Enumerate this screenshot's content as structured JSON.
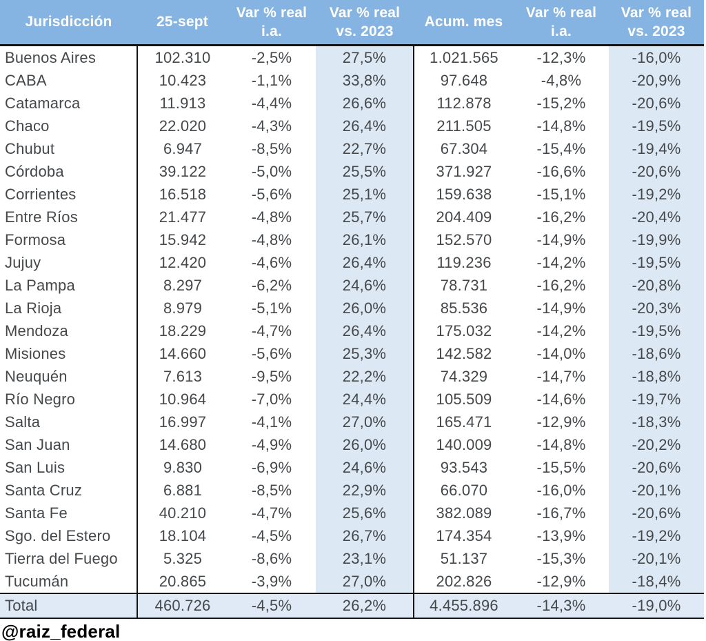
{
  "header": {
    "cols": [
      {
        "id": "jurisdiccion",
        "line1": "Jurisdicción",
        "line2": ""
      },
      {
        "id": "sept25",
        "line1": "25-sept",
        "line2": ""
      },
      {
        "id": "var-ia",
        "line1": "Var % real",
        "line2": "i.a."
      },
      {
        "id": "var-2023",
        "line1": "Var % real",
        "line2": "vs. 2023"
      },
      {
        "id": "acum-mes",
        "line1": "Acum. mes",
        "line2": ""
      },
      {
        "id": "acum-ia",
        "line1": "Var % real",
        "line2": "i.a."
      },
      {
        "id": "acum-2023",
        "line1": "Var % real",
        "line2": "vs. 2023"
      }
    ]
  },
  "footer": {
    "handle": "@raiz_federal"
  },
  "colors": {
    "header_bg": "#85b4e2",
    "header_text": "#ffffff",
    "highlight_col_bg": "#dce9f5",
    "total_row_bg": "#dfeaf6",
    "body_text": "#45484b",
    "border": "#141414"
  },
  "chart_data": {
    "type": "table",
    "title": "",
    "columns": [
      "Jurisdicción",
      "25-sept",
      "Var % real i.a.",
      "Var % real vs. 2023",
      "Acum. mes",
      "Var % real i.a.",
      "Var % real vs. 2023"
    ],
    "rows": [
      [
        "Buenos Aires",
        "102.310",
        "-2,5%",
        "27,5%",
        "1.021.565",
        "-12,3%",
        "-16,0%"
      ],
      [
        "CABA",
        "10.423",
        "-1,1%",
        "33,8%",
        "97.648",
        "-4,8%",
        "-20,9%"
      ],
      [
        "Catamarca",
        "11.913",
        "-4,4%",
        "26,6%",
        "112.878",
        "-15,2%",
        "-20,6%"
      ],
      [
        "Chaco",
        "22.020",
        "-4,3%",
        "26,4%",
        "211.505",
        "-14,8%",
        "-19,5%"
      ],
      [
        "Chubut",
        "6.947",
        "-8,5%",
        "22,7%",
        "67.304",
        "-15,4%",
        "-19,4%"
      ],
      [
        "Córdoba",
        "39.122",
        "-5,0%",
        "25,5%",
        "371.927",
        "-16,6%",
        "-20,6%"
      ],
      [
        "Corrientes",
        "16.518",
        "-5,6%",
        "25,1%",
        "159.638",
        "-15,1%",
        "-19,2%"
      ],
      [
        "Entre Ríos",
        "21.477",
        "-4,8%",
        "25,7%",
        "204.409",
        "-16,2%",
        "-20,4%"
      ],
      [
        "Formosa",
        "15.942",
        "-4,8%",
        "26,1%",
        "152.570",
        "-14,9%",
        "-19,9%"
      ],
      [
        "Jujuy",
        "12.420",
        "-4,6%",
        "26,4%",
        "119.236",
        "-14,2%",
        "-19,5%"
      ],
      [
        "La Pampa",
        "8.297",
        "-6,2%",
        "24,6%",
        "78.731",
        "-16,2%",
        "-20,8%"
      ],
      [
        "La Rioja",
        "8.979",
        "-5,1%",
        "26,0%",
        "85.536",
        "-14,9%",
        "-20,3%"
      ],
      [
        "Mendoza",
        "18.229",
        "-4,7%",
        "26,4%",
        "175.032",
        "-14,2%",
        "-19,5%"
      ],
      [
        "Misiones",
        "14.660",
        "-5,6%",
        "25,3%",
        "142.582",
        "-14,0%",
        "-18,6%"
      ],
      [
        "Neuquén",
        "7.613",
        "-9,5%",
        "22,2%",
        "74.329",
        "-14,7%",
        "-18,8%"
      ],
      [
        "Río Negro",
        "10.964",
        "-7,0%",
        "24,4%",
        "105.509",
        "-14,6%",
        "-19,7%"
      ],
      [
        "Salta",
        "16.997",
        "-4,1%",
        "27,0%",
        "165.471",
        "-12,9%",
        "-18,3%"
      ],
      [
        "San Juan",
        "14.680",
        "-4,9%",
        "26,0%",
        "140.009",
        "-14,8%",
        "-20,2%"
      ],
      [
        "San Luis",
        "9.830",
        "-6,9%",
        "24,6%",
        "93.543",
        "-15,5%",
        "-20,6%"
      ],
      [
        "Santa Cruz",
        "6.881",
        "-8,5%",
        "22,9%",
        "66.070",
        "-16,0%",
        "-20,1%"
      ],
      [
        "Santa Fe",
        "40.210",
        "-4,7%",
        "25,6%",
        "382.089",
        "-16,7%",
        "-20,6%"
      ],
      [
        "Sgo. del Estero",
        "18.104",
        "-4,5%",
        "26,7%",
        "174.354",
        "-13,9%",
        "-19,2%"
      ],
      [
        "Tierra del Fuego",
        "5.325",
        "-8,6%",
        "23,1%",
        "51.137",
        "-15,3%",
        "-20,1%"
      ],
      [
        "Tucumán",
        "20.865",
        "-3,9%",
        "27,0%",
        "202.826",
        "-12,9%",
        "-18,4%"
      ]
    ],
    "total": [
      "Total",
      "460.726",
      "-4,5%",
      "26,2%",
      "4.455.896",
      "-14,3%",
      "-19,0%"
    ]
  }
}
